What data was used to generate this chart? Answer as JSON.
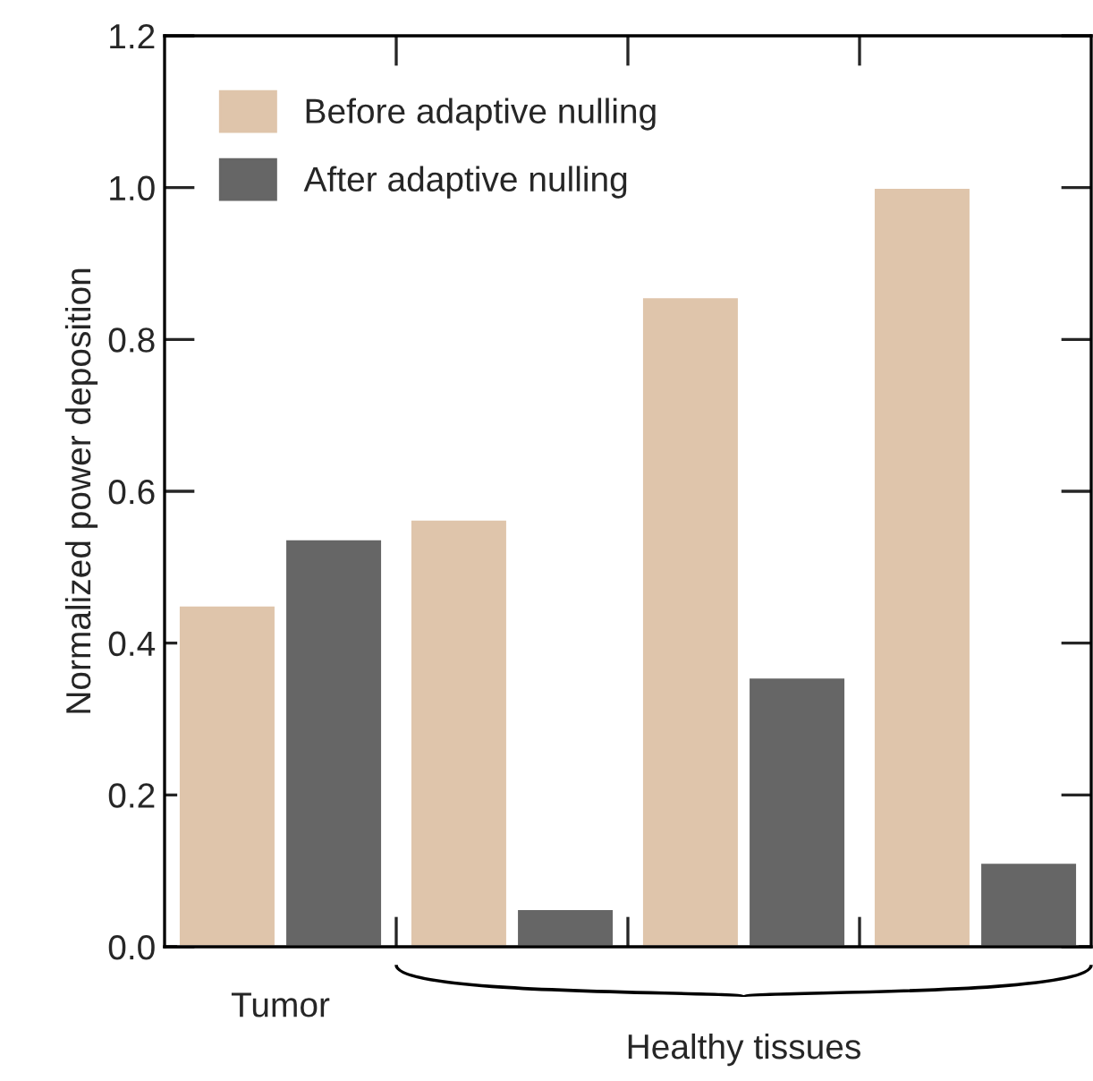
{
  "chart_data": {
    "type": "bar",
    "ylabel": "Normalized power deposition",
    "categories": [
      "Tumor",
      null,
      null,
      null
    ],
    "series": [
      {
        "name": "Before adaptive nulling",
        "color": "#dfc5ab",
        "values": [
          0.45,
          0.563,
          0.856,
          1.0
        ]
      },
      {
        "name": "After adaptive nulling",
        "color": "#666666",
        "values": [
          0.537,
          0.05,
          0.355,
          0.111
        ]
      }
    ],
    "ylim": [
      0,
      1.2
    ],
    "yticks": [
      {
        "value": 0,
        "label": "0.0"
      },
      {
        "value": 0.2,
        "label": "0.2"
      },
      {
        "value": 0.4,
        "label": "0.4"
      },
      {
        "value": 0.6,
        "label": "0.6"
      },
      {
        "value": 0.8,
        "label": "0.8"
      },
      {
        "value": 1.0,
        "label": "1.0"
      },
      {
        "value": 1.2,
        "label": "1.2"
      }
    ],
    "annotations": [
      "Healthy tissues"
    ],
    "legend": "top left",
    "grid": false
  }
}
